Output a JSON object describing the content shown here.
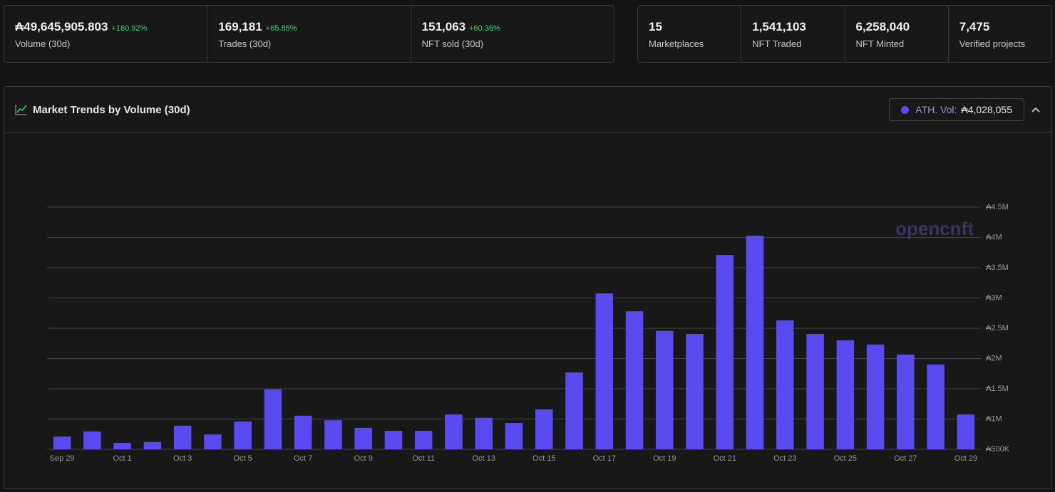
{
  "stats": [
    {
      "value": "₳49,645,905.803",
      "change": "+160.92%",
      "label": "Volume (30d)"
    },
    {
      "value": "169,181",
      "change": "+65.85%",
      "label": "Trades (30d)"
    },
    {
      "value": "151,063",
      "change": "+60.36%",
      "label": "NFT sold (30d)"
    }
  ],
  "totals": [
    {
      "value": "15",
      "label": "Marketplaces"
    },
    {
      "value": "1,541,103",
      "label": "NFT Traded"
    },
    {
      "value": "6,258,040",
      "label": "NFT Minted"
    },
    {
      "value": "7,475",
      "label": "Verified projects"
    }
  ],
  "ath": {
    "label": "ATH. Vol:",
    "value": "₳4,028,055"
  },
  "watermark": "opencnft",
  "chart_data": {
    "type": "bar",
    "title": "Market Trends by Volume (30d)",
    "color": "#5a4bf0",
    "grid": true,
    "categories": [
      "Sep 29",
      null,
      "Oct 1",
      null,
      "Oct 3",
      null,
      "Oct 5",
      null,
      "Oct 7",
      null,
      "Oct 9",
      null,
      "Oct 11",
      null,
      "Oct 13",
      null,
      "Oct 15",
      null,
      "Oct 17",
      null,
      "Oct 19",
      null,
      "Oct 21",
      null,
      "Oct 23",
      null,
      "Oct 25",
      null,
      "Oct 27",
      null,
      "Oct 29"
    ],
    "values": [
      710000,
      795000,
      605000,
      620000,
      890000,
      745000,
      960000,
      1490000,
      1055000,
      980000,
      855000,
      805000,
      805000,
      1075000,
      1020000,
      935000,
      1160000,
      1770000,
      3075000,
      2780000,
      2455000,
      2405000,
      3710000,
      4028055,
      2630000,
      2405000,
      2300000,
      2230000,
      2065000,
      1900000,
      1075000
    ],
    "ylim": [
      500000,
      4500000
    ],
    "yticks": [
      {
        "value": 500000,
        "label": "₳500K"
      },
      {
        "value": 1000000,
        "label": "₳1M"
      },
      {
        "value": 1500000,
        "label": "₳1.5M"
      },
      {
        "value": 2000000,
        "label": "₳2M"
      },
      {
        "value": 2500000,
        "label": "₳2.5M"
      },
      {
        "value": 3000000,
        "label": "₳3M"
      },
      {
        "value": 3500000,
        "label": "₳3.5M"
      },
      {
        "value": 4000000,
        "label": "₳4M"
      },
      {
        "value": 4500000,
        "label": "₳4.5M"
      }
    ]
  }
}
